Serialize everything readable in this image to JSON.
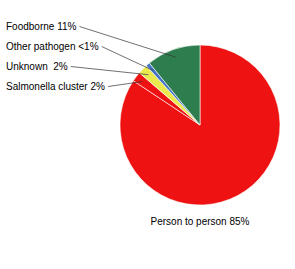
{
  "chart_data": {
    "type": "pie",
    "categories": [
      "Person to person 85%",
      "Salmonella cluster 2%",
      "Unknown  2%",
      "Other pathogen <1%",
      "Foodborne 11%"
    ],
    "values": [
      85,
      2,
      2,
      0.8,
      11
    ],
    "colors": [
      "#ee1212",
      "#ee1212",
      "#eaea50",
      "#4472c4",
      "#2e7d4e"
    ]
  }
}
